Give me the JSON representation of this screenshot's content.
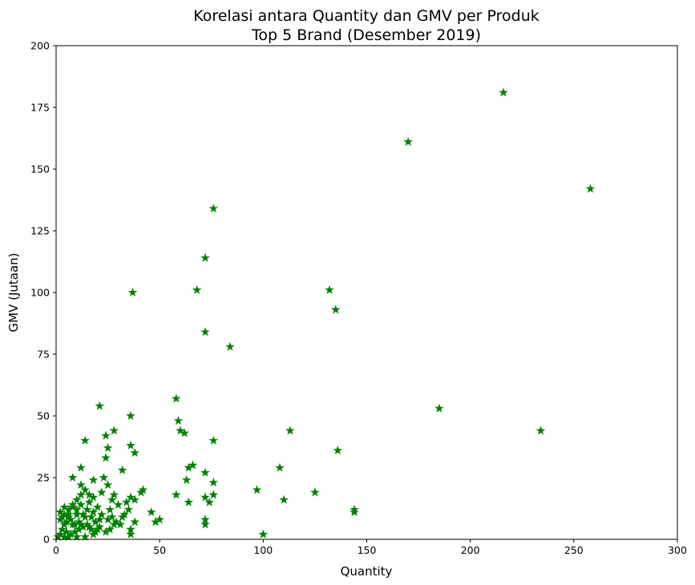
{
  "chart_data": {
    "type": "scatter",
    "title_line1": "Korelasi antara Quantity dan GMV per Produk",
    "title_line2": "Top 5 Brand (Desember 2019)",
    "xlabel": "Quantity",
    "ylabel": "GMV (Jutaan)",
    "xlim": [
      0,
      300
    ],
    "ylim": [
      0,
      200
    ],
    "xticks": [
      "0",
      "50",
      "100",
      "150",
      "200",
      "250",
      "300"
    ],
    "yticks": [
      "0",
      "25",
      "50",
      "75",
      "100",
      "125",
      "150",
      "175",
      "200"
    ],
    "grid": false,
    "marker": "star",
    "color": "#008000",
    "points": [
      [
        216,
        181
      ],
      [
        170,
        161
      ],
      [
        258,
        142
      ],
      [
        76,
        134
      ],
      [
        72,
        114
      ],
      [
        132,
        101
      ],
      [
        68,
        101
      ],
      [
        37,
        100
      ],
      [
        135,
        93
      ],
      [
        72,
        84
      ],
      [
        84,
        78
      ],
      [
        58,
        57
      ],
      [
        21,
        54
      ],
      [
        185,
        53
      ],
      [
        36,
        50
      ],
      [
        59,
        48
      ],
      [
        113,
        44
      ],
      [
        234,
        44
      ],
      [
        60,
        44
      ],
      [
        62,
        43
      ],
      [
        28,
        44
      ],
      [
        24,
        42
      ],
      [
        14,
        40
      ],
      [
        76,
        40
      ],
      [
        36,
        38
      ],
      [
        25,
        37
      ],
      [
        136,
        36
      ],
      [
        38,
        35
      ],
      [
        24,
        33
      ],
      [
        66,
        30
      ],
      [
        12,
        29
      ],
      [
        64,
        29
      ],
      [
        108,
        29
      ],
      [
        32,
        28
      ],
      [
        72,
        27
      ],
      [
        8,
        25
      ],
      [
        23,
        25
      ],
      [
        63,
        24
      ],
      [
        18,
        24
      ],
      [
        76,
        23
      ],
      [
        12,
        22
      ],
      [
        25,
        22
      ],
      [
        14,
        20
      ],
      [
        42,
        20
      ],
      [
        97,
        20
      ],
      [
        125,
        19
      ],
      [
        41,
        19
      ],
      [
        16,
        18
      ],
      [
        28,
        18
      ],
      [
        58,
        18
      ],
      [
        76,
        18
      ],
      [
        36,
        17
      ],
      [
        72,
        17
      ],
      [
        27,
        16
      ],
      [
        110,
        16
      ],
      [
        64,
        15
      ],
      [
        74,
        15
      ],
      [
        34,
        15
      ],
      [
        30,
        14
      ],
      [
        4,
        13
      ],
      [
        8,
        13
      ],
      [
        12,
        14
      ],
      [
        20,
        13
      ],
      [
        26,
        12
      ],
      [
        144,
        12
      ],
      [
        144,
        11
      ],
      [
        46,
        11
      ],
      [
        18,
        11
      ],
      [
        22,
        10
      ],
      [
        10,
        10
      ],
      [
        6,
        9
      ],
      [
        32,
        9
      ],
      [
        14,
        9
      ],
      [
        2,
        8
      ],
      [
        48,
        7
      ],
      [
        50,
        8
      ],
      [
        38,
        7
      ],
      [
        28,
        6
      ],
      [
        72,
        6
      ],
      [
        72,
        8
      ],
      [
        4,
        6
      ],
      [
        8,
        6
      ],
      [
        12,
        6
      ],
      [
        16,
        5
      ],
      [
        20,
        4
      ],
      [
        26,
        4
      ],
      [
        36,
        4
      ],
      [
        24,
        3
      ],
      [
        36,
        2
      ],
      [
        100,
        2
      ],
      [
        3,
        4
      ],
      [
        5,
        3
      ],
      [
        7,
        2
      ],
      [
        9,
        3
      ],
      [
        11,
        4
      ],
      [
        2,
        2
      ],
      [
        4,
        1
      ],
      [
        6,
        1
      ],
      [
        1,
        1
      ],
      [
        10,
        1
      ],
      [
        14,
        1
      ],
      [
        18,
        2
      ],
      [
        2,
        11
      ],
      [
        6,
        12
      ],
      [
        10,
        12
      ],
      [
        13,
        10
      ],
      [
        15,
        12
      ],
      [
        17,
        9
      ],
      [
        19,
        7
      ],
      [
        21,
        8
      ],
      [
        3,
        9
      ],
      [
        5,
        7
      ],
      [
        7,
        8
      ],
      [
        9,
        6
      ],
      [
        11,
        7
      ],
      [
        13,
        5
      ],
      [
        15,
        6
      ],
      [
        17,
        4
      ],
      [
        19,
        3
      ],
      [
        21,
        5
      ],
      [
        25,
        8
      ],
      [
        27,
        9
      ],
      [
        29,
        7
      ],
      [
        31,
        6
      ],
      [
        33,
        10
      ],
      [
        35,
        12
      ],
      [
        38,
        16
      ],
      [
        16,
        15
      ],
      [
        18,
        17
      ],
      [
        22,
        19
      ],
      [
        10,
        16
      ],
      [
        12,
        18
      ],
      [
        8,
        14
      ],
      [
        6,
        10
      ],
      [
        4,
        10
      ]
    ]
  }
}
